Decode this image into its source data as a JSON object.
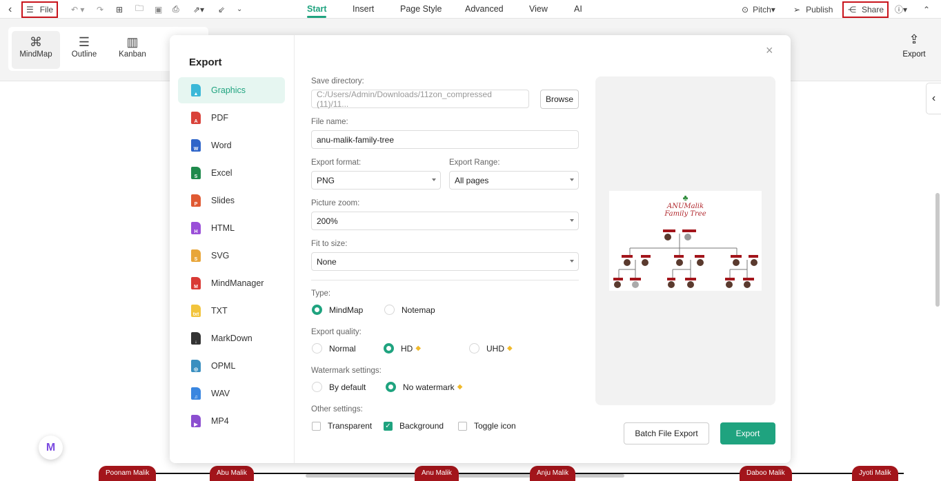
{
  "toolbar": {
    "file_label": "File",
    "tabs": [
      "Start",
      "Insert",
      "Page Style",
      "Advanced",
      "View",
      "AI"
    ],
    "pitch": "Pitch",
    "publish": "Publish",
    "share": "Share"
  },
  "ribbon": {
    "views": [
      "MindMap",
      "Outline",
      "Kanban"
    ],
    "export": "Export"
  },
  "canvas": {
    "nodes": [
      "Poonam Malik",
      "Abu Malik",
      "Anu Malik",
      "Anju Malik",
      "Daboo Malik",
      "Jyoti Malik"
    ]
  },
  "dialog": {
    "title": "Export",
    "formats": [
      {
        "label": "Graphics",
        "color": "#3bb8d8",
        "glyph": "▲"
      },
      {
        "label": "PDF",
        "color": "#d9423a",
        "glyph": "A"
      },
      {
        "label": "Word",
        "color": "#2f65c9",
        "glyph": "W"
      },
      {
        "label": "Excel",
        "color": "#1f8a4c",
        "glyph": "S"
      },
      {
        "label": "Slides",
        "color": "#e05a33",
        "glyph": "P"
      },
      {
        "label": "HTML",
        "color": "#9a4fd8",
        "glyph": "H"
      },
      {
        "label": "SVG",
        "color": "#e8a63a",
        "glyph": "S"
      },
      {
        "label": "MindManager",
        "color": "#d93a35",
        "glyph": "M"
      },
      {
        "label": "TXT",
        "color": "#f2c43c",
        "glyph": "txt"
      },
      {
        "label": "MarkDown",
        "color": "#333333",
        "glyph": "↓"
      },
      {
        "label": "OPML",
        "color": "#3a8fc0",
        "glyph": "◎"
      },
      {
        "label": "WAV",
        "color": "#3a86e0",
        "glyph": "♫"
      },
      {
        "label": "MP4",
        "color": "#8c4fd0",
        "glyph": "▶"
      }
    ],
    "selected_format": "Graphics",
    "save_directory_label": "Save directory:",
    "save_directory_value": "C:/Users/Admin/Downloads/11zon_compressed (11)/11...",
    "browse": "Browse",
    "file_name_label": "File name:",
    "file_name_value": "anu-malik-family-tree",
    "export_format_label": "Export format:",
    "export_format_value": "PNG",
    "export_range_label": "Export Range:",
    "export_range_value": "All pages",
    "picture_zoom_label": "Picture zoom:",
    "picture_zoom_value": "200%",
    "fit_label": "Fit to size:",
    "fit_value": "None",
    "type_label": "Type:",
    "type_options": [
      "MindMap",
      "Notemap"
    ],
    "type_selected": "MindMap",
    "quality_label": "Export quality:",
    "quality_options": [
      "Normal",
      "HD",
      "UHD"
    ],
    "quality_selected": "HD",
    "watermark_label": "Watermark settings:",
    "watermark_options": [
      "By default",
      "No watermark"
    ],
    "watermark_selected": "No watermark",
    "other_label": "Other settings:",
    "other_options": [
      {
        "label": "Transparent",
        "checked": false
      },
      {
        "label": "Background",
        "checked": true
      },
      {
        "label": "Toggle icon",
        "checked": false
      }
    ],
    "preview_title_line1": "ANUMalik",
    "preview_title_line2": "Family Tree",
    "batch": "Batch File Export",
    "export": "Export"
  },
  "colors": {
    "accent": "#1fa37f",
    "node": "#a3151b",
    "highlight": "#c8131b"
  }
}
